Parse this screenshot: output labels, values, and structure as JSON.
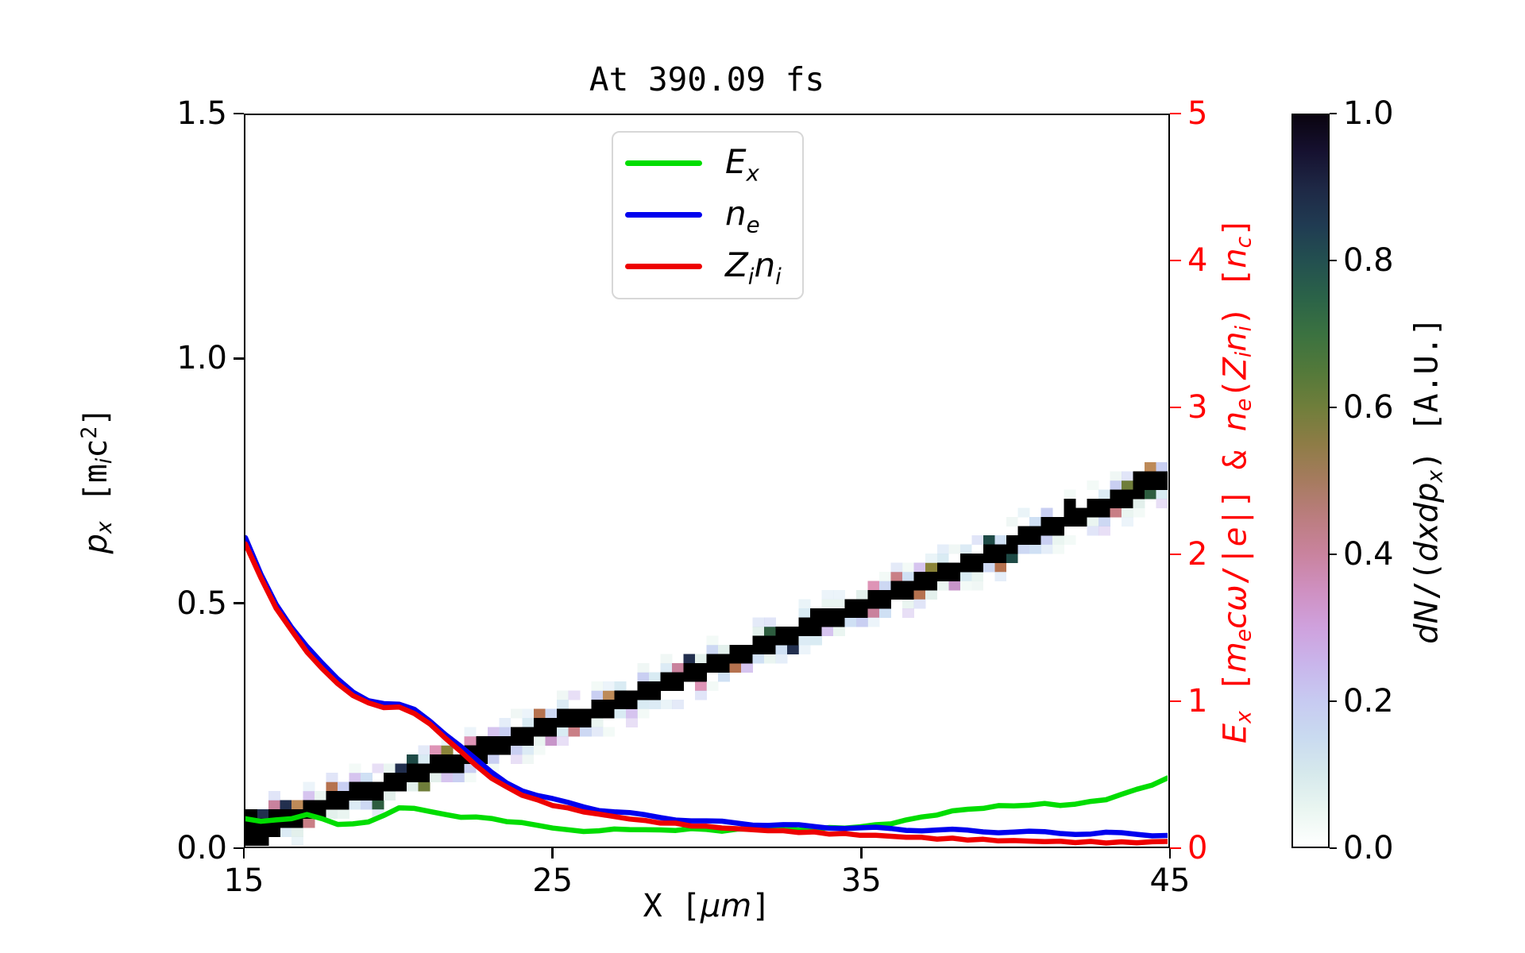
{
  "title": "At 390.09 fs",
  "colors": {
    "ex_line": "#00dd00",
    "ne_line": "#0000ee",
    "zini_line": "#ee0000",
    "right_axis": "#ff0000",
    "spine": "#000000",
    "legend_border": "#d7d7d7"
  },
  "axes": {
    "x": {
      "label_segments": [
        {
          "t": "X [",
          "m": 1
        },
        {
          "t": "μm",
          "i": 1
        },
        {
          "t": "]",
          "m": 1
        }
      ],
      "label_plain": "X [μm]",
      "range": [
        15,
        45
      ],
      "tick_values": [
        15,
        25,
        35,
        45
      ],
      "tick_labels": [
        "15",
        "25",
        "35",
        "45"
      ]
    },
    "y_left": {
      "label_segments": [
        {
          "t": "p",
          "i": 1
        },
        {
          "t": "x",
          "i": 1,
          "sub": 1
        },
        {
          "t": " [",
          "m": 1
        },
        {
          "t": "m",
          "m": 1
        },
        {
          "t": "i",
          "i": 1,
          "sub": 1
        },
        {
          "t": "c",
          "m": 1
        },
        {
          "t": "2",
          "m": 1,
          "sup": 1
        },
        {
          "t": "]",
          "m": 1
        }
      ],
      "label_plain": "p_x [m_i c^2]",
      "range": [
        0,
        1.5
      ],
      "tick_values": [
        0,
        0.5,
        1.0,
        1.5
      ],
      "tick_labels": [
        "0.0",
        "0.5",
        "1.0",
        "1.5"
      ]
    },
    "y_right": {
      "label_segments": [
        {
          "t": "E",
          "i": 1
        },
        {
          "t": "x",
          "i": 1,
          "sub": 1
        },
        {
          "t": " [",
          "m": 1
        },
        {
          "t": "m",
          "i": 1
        },
        {
          "t": "e",
          "i": 1,
          "sub": 1
        },
        {
          "t": "c",
          "i": 1
        },
        {
          "t": "ω",
          "i": 1
        },
        {
          "t": "/|",
          "m": 1
        },
        {
          "t": "e",
          "i": 1
        },
        {
          "t": "|] & ",
          "m": 1
        },
        {
          "t": "n",
          "i": 1
        },
        {
          "t": "e",
          "i": 1,
          "sub": 1
        },
        {
          "t": "(",
          "m": 1
        },
        {
          "t": "Z",
          "i": 1
        },
        {
          "t": "i",
          "i": 1,
          "sub": 1
        },
        {
          "t": "n",
          "i": 1
        },
        {
          "t": "i",
          "i": 1,
          "sub": 1
        },
        {
          "t": ") [",
          "m": 1
        },
        {
          "t": "n",
          "i": 1
        },
        {
          "t": "c",
          "i": 1,
          "sub": 1
        },
        {
          "t": "]",
          "m": 1
        }
      ],
      "label_plain": "E_x [m_e cω/|e|] & n_e(Z_i n_i) [n_c]",
      "range": [
        0,
        5
      ],
      "tick_values": [
        0,
        1,
        2,
        3,
        4,
        5
      ],
      "tick_labels": [
        "0",
        "1",
        "2",
        "3",
        "4",
        "5"
      ],
      "color": "#ff0000"
    }
  },
  "legend": {
    "items": [
      {
        "name": "ex",
        "color": "#00dd00",
        "label_plain": "E_x",
        "label_segments": [
          {
            "t": "E",
            "i": 1
          },
          {
            "t": "x",
            "i": 1,
            "sub": 1
          }
        ]
      },
      {
        "name": "ne",
        "color": "#0000ee",
        "label_plain": "n_e",
        "label_segments": [
          {
            "t": "n",
            "i": 1
          },
          {
            "t": "e",
            "i": 1,
            "sub": 1
          }
        ]
      },
      {
        "name": "zini",
        "color": "#ee0000",
        "label_plain": "Z_i n_i",
        "label_segments": [
          {
            "t": "Z",
            "i": 1
          },
          {
            "t": "i",
            "i": 1,
            "sub": 1
          },
          {
            "t": "n",
            "i": 1
          },
          {
            "t": "i",
            "i": 1,
            "sub": 1
          }
        ]
      }
    ]
  },
  "colorbar": {
    "label_segments": [
      {
        "t": "dN",
        "i": 1
      },
      {
        "t": "/(",
        "m": 1
      },
      {
        "t": "dxdp",
        "i": 1
      },
      {
        "t": "x",
        "i": 1,
        "sub": 1
      },
      {
        "t": ")",
        "m": 1
      },
      {
        "t": " [A.U.]",
        "m": 1
      }
    ],
    "label_plain": "dN/(dxdp_x) [A.U.]",
    "value_range": [
      0,
      1
    ],
    "tick_values": [
      0,
      0.2,
      0.4,
      0.6,
      0.8,
      1.0
    ],
    "tick_labels": [
      "0.0",
      "0.2",
      "0.4",
      "0.6",
      "0.8",
      "1.0"
    ],
    "gradient_stops": [
      [
        0.0,
        "#ffffff"
      ],
      [
        0.05,
        "#eaf6f1"
      ],
      [
        0.1,
        "#d6e9ec"
      ],
      [
        0.15,
        "#c9daf0"
      ],
      [
        0.2,
        "#c7caf1"
      ],
      [
        0.25,
        "#c9b5eb"
      ],
      [
        0.3,
        "#cfa1dd"
      ],
      [
        0.35,
        "#cf90c1"
      ],
      [
        0.4,
        "#c9839e"
      ],
      [
        0.45,
        "#bb7d7f"
      ],
      [
        0.5,
        "#a67b5f"
      ],
      [
        0.55,
        "#8e7c46"
      ],
      [
        0.6,
        "#707e3b"
      ],
      [
        0.65,
        "#53793a"
      ],
      [
        0.7,
        "#3b7240"
      ],
      [
        0.75,
        "#2b6348"
      ],
      [
        0.8,
        "#235050"
      ],
      [
        0.85,
        "#203b52"
      ],
      [
        0.9,
        "#1e2845"
      ],
      [
        0.95,
        "#161130"
      ],
      [
        1.0,
        "#0a0410"
      ]
    ]
  },
  "chart_data": {
    "type": "line+heatmap",
    "title": "At 390.09 fs",
    "xlabel": "X [μm]",
    "ylabel_left": "p_x [m_i c^2]",
    "ylabel_right": "E_x [m_e cω/|e|] & n_e(Z_i n_i) [n_c]",
    "x_range": [
      15,
      45
    ],
    "y_left_range": [
      0,
      1.5
    ],
    "y_right_range": [
      0,
      5
    ],
    "grid": false,
    "legend_position": "upper center",
    "x_start": 15,
    "x_step": 0.5,
    "series": [
      {
        "name": "Ex",
        "axis": "right",
        "color": "#00dd00",
        "values": [
          0.19,
          0.165,
          0.175,
          0.19,
          0.21,
          0.185,
          0.15,
          0.145,
          0.165,
          0.21,
          0.255,
          0.26,
          0.235,
          0.21,
          0.2,
          0.195,
          0.185,
          0.17,
          0.155,
          0.14,
          0.125,
          0.105,
          0.1,
          0.105,
          0.11,
          0.115,
          0.11,
          0.105,
          0.11,
          0.115,
          0.11,
          0.105,
          0.11,
          0.115,
          0.12,
          0.115,
          0.11,
          0.115,
          0.12,
          0.125,
          0.13,
          0.14,
          0.155,
          0.175,
          0.195,
          0.215,
          0.235,
          0.25,
          0.26,
          0.27,
          0.275,
          0.28,
          0.285,
          0.28,
          0.285,
          0.3,
          0.32,
          0.35,
          0.385,
          0.42,
          0.46
        ],
        "wiggle": {
          "amp": 0.005,
          "wav": 1.4
        }
      },
      {
        "name": "ne",
        "axis": "right",
        "color": "#0000ee",
        "values": [
          2.1,
          1.86,
          1.66,
          1.5,
          1.36,
          1.24,
          1.14,
          1.06,
          1.0,
          0.97,
          0.96,
          0.93,
          0.86,
          0.77,
          0.68,
          0.585,
          0.5,
          0.435,
          0.385,
          0.345,
          0.315,
          0.29,
          0.27,
          0.25,
          0.235,
          0.22,
          0.205,
          0.195,
          0.185,
          0.175,
          0.165,
          0.16,
          0.155,
          0.15,
          0.145,
          0.14,
          0.135,
          0.13,
          0.128,
          0.125,
          0.12,
          0.118,
          0.115,
          0.112,
          0.11,
          0.107,
          0.105,
          0.102,
          0.1,
          0.098,
          0.095,
          0.092,
          0.09,
          0.088,
          0.086,
          0.083,
          0.086,
          0.082,
          0.08,
          0.077,
          0.075
        ],
        "wiggle": {
          "amp": 0.009,
          "wav": 0.62
        }
      },
      {
        "name": "Zini",
        "axis": "right",
        "color": "#ee0000",
        "values": [
          2.07,
          1.83,
          1.63,
          1.47,
          1.33,
          1.21,
          1.11,
          1.03,
          0.975,
          0.95,
          0.945,
          0.91,
          0.83,
          0.74,
          0.645,
          0.55,
          0.465,
          0.4,
          0.35,
          0.31,
          0.28,
          0.255,
          0.235,
          0.215,
          0.2,
          0.185,
          0.17,
          0.16,
          0.15,
          0.14,
          0.13,
          0.125,
          0.115,
          0.11,
          0.105,
          0.1,
          0.095,
          0.09,
          0.085,
          0.08,
          0.075,
          0.07,
          0.065,
          0.06,
          0.055,
          0.05,
          0.047,
          0.044,
          0.04,
          0.037,
          0.034,
          0.032,
          0.03,
          0.028,
          0.026,
          0.025,
          0.024,
          0.023,
          0.024,
          0.026,
          0.03
        ],
        "wiggle": {
          "amp": 0.005,
          "wav": 0.9
        }
      }
    ],
    "phase_space_band": {
      "description": "2D histogram dN/(dxdp_x): narrow pixelated band rising from (x=15, p=0.03) to (x=45, p=0.76), black core with pale/mid-tone speckled edges, values 0-1 A.U.",
      "p_at_x15": 0.03,
      "slope_per_um": 0.0203,
      "quad_per_um2": 0.000133,
      "cols": 80,
      "rows": 80,
      "core_color": "#000000",
      "palette_pale": [
        "#eaf5f1",
        "#d9ebf3",
        "#cfe0f4",
        "#c9cff2",
        "#d6c4ef",
        "#e3f0ec",
        "#dcebf5",
        "#cdd8f3"
      ],
      "palette_mid": [
        "#de94b6",
        "#c9829d",
        "#bd8a58",
        "#8a8339",
        "#2d5d3f",
        "#1e4a46",
        "#222f4e",
        "#c795c9",
        "#b5724f",
        "#c97f86",
        "#6f7d3a"
      ],
      "corner_cells": [
        [
          0,
          0
        ],
        [
          0,
          1
        ],
        [
          0,
          2
        ],
        [
          0,
          3
        ],
        [
          1,
          0
        ],
        [
          1,
          1
        ],
        [
          1,
          2
        ],
        [
          2,
          1
        ],
        [
          2,
          2
        ]
      ]
    }
  }
}
